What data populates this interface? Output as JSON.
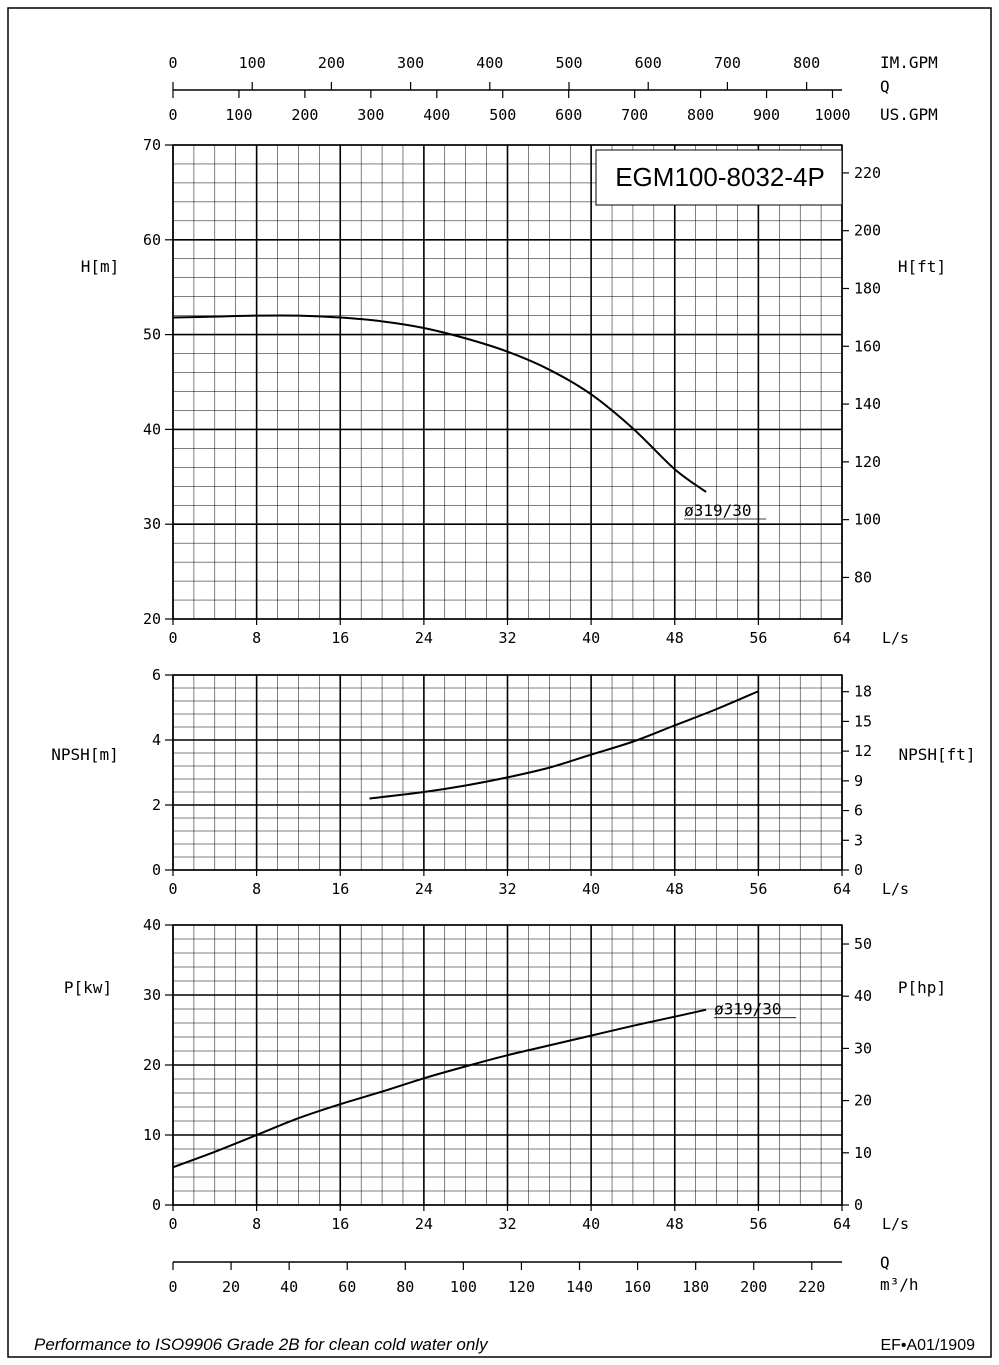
{
  "title": "EGM100-8032-4P",
  "footer": {
    "note": "Performance to ISO9906 Grade 2B for clean cold water only",
    "code": "EF•A01/1909"
  },
  "top_flow_axes": {
    "im_gpm": {
      "label": "IM.GPM",
      "ticks": [
        0,
        100,
        200,
        300,
        400,
        500,
        600,
        700,
        800
      ]
    },
    "q_label": "Q",
    "us_gpm": {
      "label": "US.GPM",
      "ticks": [
        0,
        100,
        200,
        300,
        400,
        500,
        600,
        700,
        800,
        900,
        1000
      ]
    }
  },
  "bottom_flow_axis": {
    "q_label": "Q",
    "unit_label": "m³/h",
    "ticks": [
      0,
      20,
      40,
      60,
      80,
      100,
      120,
      140,
      160,
      180,
      200,
      220
    ]
  },
  "chart_data": [
    {
      "type": "line",
      "id": "head",
      "ylabel": "H[m]",
      "ylabel_right": "H[ft]",
      "xlabel": "L/s",
      "xlim": [
        0,
        64
      ],
      "ylim": [
        20,
        70
      ],
      "x_ticks": [
        0,
        8,
        16,
        24,
        32,
        40,
        48,
        56,
        64
      ],
      "y_ticks": [
        20,
        30,
        40,
        50,
        60,
        70
      ],
      "y_ticks_right": [
        80,
        100,
        120,
        140,
        160,
        180,
        200,
        220
      ],
      "grid": true,
      "series": [
        {
          "name": "ø319/30",
          "x": [
            0,
            4,
            8,
            12,
            16,
            20,
            24,
            28,
            32,
            36,
            40,
            44,
            48,
            51
          ],
          "y": [
            51.8,
            51.9,
            52.0,
            52.0,
            51.8,
            51.4,
            50.7,
            49.6,
            48.2,
            46.3,
            43.7,
            40.1,
            35.8,
            33.4
          ]
        }
      ]
    },
    {
      "type": "line",
      "id": "npsh",
      "ylabel": "NPSH[m]",
      "ylabel_right": "NPSH[ft]",
      "xlabel": "L/s",
      "xlim": [
        0,
        64
      ],
      "ylim": [
        0,
        6
      ],
      "x_ticks": [
        0,
        8,
        16,
        24,
        32,
        40,
        48,
        56,
        64
      ],
      "y_ticks": [
        0,
        2,
        4,
        6
      ],
      "y_ticks_right": [
        0,
        3,
        6,
        9,
        12,
        15,
        18
      ],
      "grid": true,
      "series": [
        {
          "x": [
            18.8,
            24,
            28,
            32,
            36,
            40,
            44,
            48,
            52,
            56
          ],
          "y": [
            2.2,
            2.4,
            2.6,
            2.85,
            3.15,
            3.55,
            3.95,
            4.45,
            4.95,
            5.5
          ]
        }
      ]
    },
    {
      "type": "line",
      "id": "power",
      "ylabel": "P[kw]",
      "ylabel_right": "P[hp]",
      "xlabel": "L/s",
      "xlim": [
        0,
        64
      ],
      "ylim": [
        0,
        40
      ],
      "x_ticks": [
        0,
        8,
        16,
        24,
        32,
        40,
        48,
        56,
        64
      ],
      "y_ticks": [
        0,
        10,
        20,
        30,
        40
      ],
      "y_ticks_right": [
        0,
        10,
        20,
        30,
        40,
        50
      ],
      "grid": true,
      "series": [
        {
          "name": "ø319/30",
          "x": [
            0,
            4,
            8,
            12,
            16,
            20,
            24,
            28,
            32,
            36,
            40,
            44,
            48,
            51
          ],
          "y": [
            5.4,
            7.6,
            10.0,
            12.4,
            14.4,
            16.2,
            18.1,
            19.8,
            21.4,
            22.8,
            24.2,
            25.6,
            26.9,
            27.9
          ]
        }
      ]
    }
  ]
}
